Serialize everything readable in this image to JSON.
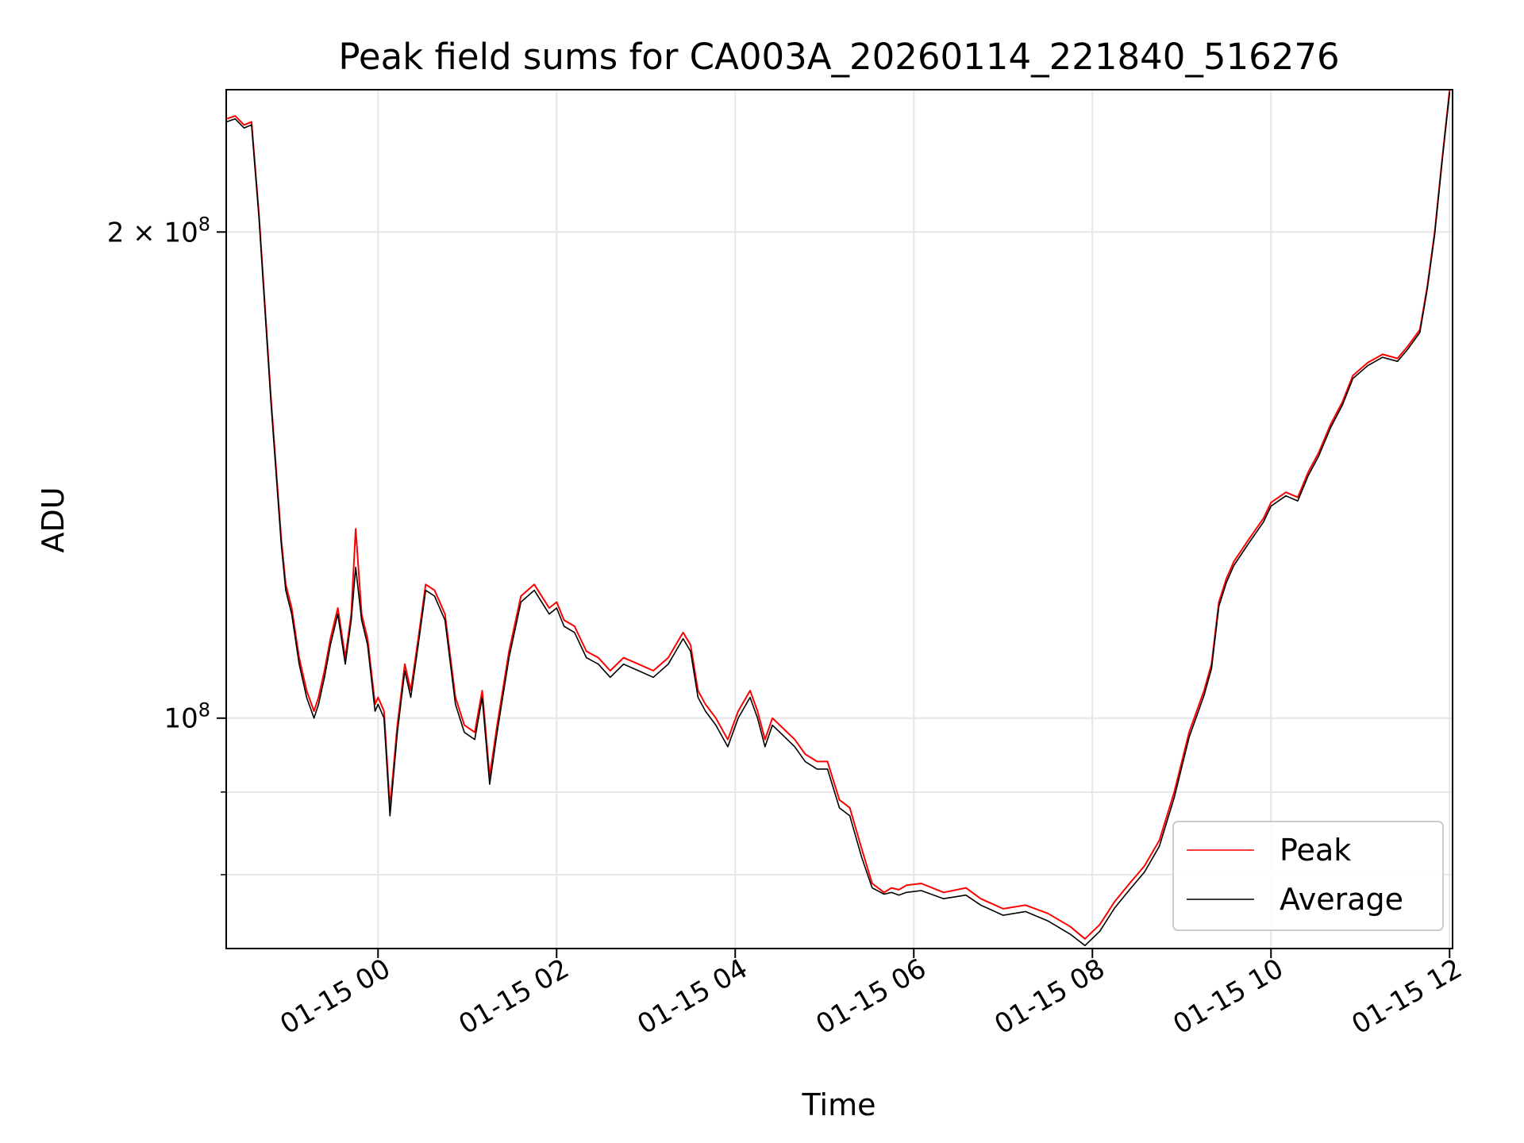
{
  "chart_data": {
    "type": "line",
    "title": "Peak field sums for CA003A_20260114_221840_516276",
    "xlabel": "Time",
    "ylabel": "ADU",
    "yscale": "log",
    "grid": true,
    "legend_position": "lower right",
    "xlim": [
      "2026-01-14 22:18",
      "2026-01-15 12:02"
    ],
    "ylim": [
      72000000,
      245000000
    ],
    "x_ticks": [
      {
        "label": "01-15 00",
        "value": "2026-01-15 00:00"
      },
      {
        "label": "01-15 02",
        "value": "2026-01-15 02:00"
      },
      {
        "label": "01-15 04",
        "value": "2026-01-15 04:00"
      },
      {
        "label": "01-15 06",
        "value": "2026-01-15 06:00"
      },
      {
        "label": "01-15 08",
        "value": "2026-01-15 08:00"
      },
      {
        "label": "01-15 10",
        "value": "2026-01-15 10:00"
      },
      {
        "label": "01-15 12",
        "value": "2026-01-15 12:00"
      }
    ],
    "y_major_ticks": [
      {
        "value": 100000000,
        "base": "10",
        "exp": "8",
        "mult": ""
      },
      {
        "value": 200000000,
        "base": "10",
        "exp": "8",
        "mult": "2 × "
      }
    ],
    "y_minor_ticks": [
      90000000,
      80000000
    ],
    "series": [
      {
        "name": "Peak",
        "color": "#ff0000",
        "x": [
          "2026-01-14 22:18",
          "2026-01-14 22:24",
          "2026-01-14 22:30",
          "2026-01-14 22:35",
          "2026-01-14 22:40",
          "2026-01-14 22:48",
          "2026-01-14 22:55",
          "2026-01-14 22:58",
          "2026-01-14 23:02",
          "2026-01-14 23:07",
          "2026-01-14 23:12",
          "2026-01-14 23:17",
          "2026-01-14 23:20",
          "2026-01-14 23:24",
          "2026-01-14 23:28",
          "2026-01-14 23:33",
          "2026-01-14 23:38",
          "2026-01-14 23:42",
          "2026-01-14 23:45",
          "2026-01-14 23:49",
          "2026-01-14 23:53",
          "2026-01-14 23:58",
          "2026-01-15 00:00",
          "2026-01-15 00:04",
          "2026-01-15 00:08",
          "2026-01-15 00:13",
          "2026-01-15 00:18",
          "2026-01-15 00:22",
          "2026-01-15 00:27",
          "2026-01-15 00:32",
          "2026-01-15 00:38",
          "2026-01-15 00:45",
          "2026-01-15 00:52",
          "2026-01-15 00:58",
          "2026-01-15 01:05",
          "2026-01-15 01:10",
          "2026-01-15 01:15",
          "2026-01-15 01:20",
          "2026-01-15 01:28",
          "2026-01-15 01:36",
          "2026-01-15 01:45",
          "2026-01-15 01:55",
          "2026-01-15 02:00",
          "2026-01-15 02:05",
          "2026-01-15 02:12",
          "2026-01-15 02:20",
          "2026-01-15 02:28",
          "2026-01-15 02:36",
          "2026-01-15 02:45",
          "2026-01-15 02:55",
          "2026-01-15 03:05",
          "2026-01-15 03:15",
          "2026-01-15 03:25",
          "2026-01-15 03:30",
          "2026-01-15 03:35",
          "2026-01-15 03:40",
          "2026-01-15 03:47",
          "2026-01-15 03:55",
          "2026-01-15 04:02",
          "2026-01-15 04:10",
          "2026-01-15 04:15",
          "2026-01-15 04:20",
          "2026-01-15 04:25",
          "2026-01-15 04:30",
          "2026-01-15 04:35",
          "2026-01-15 04:40",
          "2026-01-15 04:47",
          "2026-01-15 04:55",
          "2026-01-15 05:02",
          "2026-01-15 05:10",
          "2026-01-15 05:17",
          "2026-01-15 05:25",
          "2026-01-15 05:32",
          "2026-01-15 05:40",
          "2026-01-15 05:45",
          "2026-01-15 05:50",
          "2026-01-15 05:55",
          "2026-01-15 06:05",
          "2026-01-15 06:20",
          "2026-01-15 06:35",
          "2026-01-15 06:45",
          "2026-01-15 07:00",
          "2026-01-15 07:15",
          "2026-01-15 07:30",
          "2026-01-15 07:45",
          "2026-01-15 07:55",
          "2026-01-15 08:05",
          "2026-01-15 08:15",
          "2026-01-15 08:25",
          "2026-01-15 08:35",
          "2026-01-15 08:45",
          "2026-01-15 08:55",
          "2026-01-15 09:05",
          "2026-01-15 09:15",
          "2026-01-15 09:20",
          "2026-01-15 09:25",
          "2026-01-15 09:30",
          "2026-01-15 09:35",
          "2026-01-15 09:45",
          "2026-01-15 09:55",
          "2026-01-15 10:00",
          "2026-01-15 10:10",
          "2026-01-15 10:18",
          "2026-01-15 10:25",
          "2026-01-15 10:32",
          "2026-01-15 10:40",
          "2026-01-15 10:48",
          "2026-01-15 10:55",
          "2026-01-15 11:05",
          "2026-01-15 11:15",
          "2026-01-15 11:25",
          "2026-01-15 11:32",
          "2026-01-15 11:40",
          "2026-01-15 11:45",
          "2026-01-15 11:50",
          "2026-01-15 11:55",
          "2026-01-15 12:00"
        ],
        "y": [
          235000000,
          236000000,
          233000000,
          234000000,
          205000000,
          158000000,
          129000000,
          121000000,
          117000000,
          109000000,
          104000000,
          101000000,
          103000000,
          107000000,
          112000000,
          117000000,
          109000000,
          116000000,
          131000000,
          116000000,
          112000000,
          102000000,
          103000000,
          101000000,
          88000000,
          99000000,
          108000000,
          104000000,
          112000000,
          121000000,
          120000000,
          116000000,
          103000000,
          99000000,
          98000000,
          104000000,
          92000000,
          99000000,
          110000000,
          119000000,
          121000000,
          117000000,
          118000000,
          115000000,
          114000000,
          110000000,
          109000000,
          107000000,
          109000000,
          108000000,
          107000000,
          109000000,
          113000000,
          111000000,
          104000000,
          102000000,
          100000000,
          97000000,
          101000000,
          104000000,
          101000000,
          97000000,
          100000000,
          99000000,
          98000000,
          97000000,
          95000000,
          94000000,
          94000000,
          89000000,
          88000000,
          83000000,
          79000000,
          78000000,
          78500000,
          78300000,
          78800000,
          79000000,
          78000000,
          78500000,
          77300000,
          76200000,
          76600000,
          75700000,
          74300000,
          73000000,
          74500000,
          77000000,
          79000000,
          81000000,
          84000000,
          90000000,
          98000000,
          104000000,
          108000000,
          118000000,
          122000000,
          125000000,
          129000000,
          133000000,
          136000000,
          138000000,
          137000000,
          142000000,
          146000000,
          152000000,
          157000000,
          163000000,
          166000000,
          168000000,
          167000000,
          170000000,
          174000000,
          185000000,
          200000000,
          222000000,
          245000000
        ]
      },
      {
        "name": "Average",
        "color": "#000000",
        "x": [
          "2026-01-14 22:18",
          "2026-01-14 22:24",
          "2026-01-14 22:30",
          "2026-01-14 22:35",
          "2026-01-14 22:40",
          "2026-01-14 22:48",
          "2026-01-14 22:55",
          "2026-01-14 22:58",
          "2026-01-14 23:02",
          "2026-01-14 23:07",
          "2026-01-14 23:12",
          "2026-01-14 23:17",
          "2026-01-14 23:20",
          "2026-01-14 23:24",
          "2026-01-14 23:28",
          "2026-01-14 23:33",
          "2026-01-14 23:38",
          "2026-01-14 23:42",
          "2026-01-14 23:45",
          "2026-01-14 23:49",
          "2026-01-14 23:53",
          "2026-01-14 23:58",
          "2026-01-15 00:00",
          "2026-01-15 00:04",
          "2026-01-15 00:08",
          "2026-01-15 00:13",
          "2026-01-15 00:18",
          "2026-01-15 00:22",
          "2026-01-15 00:27",
          "2026-01-15 00:32",
          "2026-01-15 00:38",
          "2026-01-15 00:45",
          "2026-01-15 00:52",
          "2026-01-15 00:58",
          "2026-01-15 01:05",
          "2026-01-15 01:10",
          "2026-01-15 01:15",
          "2026-01-15 01:20",
          "2026-01-15 01:28",
          "2026-01-15 01:36",
          "2026-01-15 01:45",
          "2026-01-15 01:55",
          "2026-01-15 02:00",
          "2026-01-15 02:05",
          "2026-01-15 02:12",
          "2026-01-15 02:20",
          "2026-01-15 02:28",
          "2026-01-15 02:36",
          "2026-01-15 02:45",
          "2026-01-15 02:55",
          "2026-01-15 03:05",
          "2026-01-15 03:15",
          "2026-01-15 03:25",
          "2026-01-15 03:30",
          "2026-01-15 03:35",
          "2026-01-15 03:40",
          "2026-01-15 03:47",
          "2026-01-15 03:55",
          "2026-01-15 04:02",
          "2026-01-15 04:10",
          "2026-01-15 04:15",
          "2026-01-15 04:20",
          "2026-01-15 04:25",
          "2026-01-15 04:30",
          "2026-01-15 04:35",
          "2026-01-15 04:40",
          "2026-01-15 04:47",
          "2026-01-15 04:55",
          "2026-01-15 05:02",
          "2026-01-15 05:10",
          "2026-01-15 05:17",
          "2026-01-15 05:25",
          "2026-01-15 05:32",
          "2026-01-15 05:40",
          "2026-01-15 05:45",
          "2026-01-15 05:50",
          "2026-01-15 05:55",
          "2026-01-15 06:05",
          "2026-01-15 06:20",
          "2026-01-15 06:35",
          "2026-01-15 06:45",
          "2026-01-15 07:00",
          "2026-01-15 07:15",
          "2026-01-15 07:30",
          "2026-01-15 07:45",
          "2026-01-15 07:55",
          "2026-01-15 08:05",
          "2026-01-15 08:15",
          "2026-01-15 08:25",
          "2026-01-15 08:35",
          "2026-01-15 08:45",
          "2026-01-15 08:55",
          "2026-01-15 09:05",
          "2026-01-15 09:15",
          "2026-01-15 09:20",
          "2026-01-15 09:25",
          "2026-01-15 09:30",
          "2026-01-15 09:35",
          "2026-01-15 09:45",
          "2026-01-15 09:55",
          "2026-01-15 10:00",
          "2026-01-15 10:10",
          "2026-01-15 10:18",
          "2026-01-15 10:25",
          "2026-01-15 10:32",
          "2026-01-15 10:40",
          "2026-01-15 10:48",
          "2026-01-15 10:55",
          "2026-01-15 11:05",
          "2026-01-15 11:15",
          "2026-01-15 11:25",
          "2026-01-15 11:32",
          "2026-01-15 11:40",
          "2026-01-15 11:45",
          "2026-01-15 11:50",
          "2026-01-15 11:55",
          "2026-01-15 12:00"
        ],
        "y": [
          234000000,
          235000000,
          232000000,
          233000000,
          204000000,
          157000000,
          128000000,
          120000000,
          116000000,
          108000000,
          103000000,
          100000000,
          102000000,
          106000000,
          111000000,
          116000000,
          108000000,
          115000000,
          124000000,
          115000000,
          111000000,
          101000000,
          102000000,
          100000000,
          87000000,
          98000000,
          107000000,
          103000000,
          111000000,
          120000000,
          119000000,
          115000000,
          102000000,
          98000000,
          97000000,
          103000000,
          91000000,
          98000000,
          109000000,
          118000000,
          120000000,
          116000000,
          117000000,
          114000000,
          113000000,
          109000000,
          108000000,
          106000000,
          108000000,
          107000000,
          106000000,
          108000000,
          112000000,
          110000000,
          103000000,
          101000000,
          99000000,
          96000000,
          100000000,
          103000000,
          100000000,
          96000000,
          99000000,
          98000000,
          97000000,
          96000000,
          94000000,
          93000000,
          93000000,
          88000000,
          87000000,
          82000000,
          78500000,
          77800000,
          78000000,
          77700000,
          78000000,
          78200000,
          77300000,
          77700000,
          76600000,
          75500000,
          75900000,
          74900000,
          73500000,
          72300000,
          73800000,
          76300000,
          78300000,
          80300000,
          83300000,
          89300000,
          97300000,
          103300000,
          107300000,
          117300000,
          121300000,
          124300000,
          128300000,
          132300000,
          135300000,
          137300000,
          136300000,
          141300000,
          145300000,
          151300000,
          156300000,
          162300000,
          165300000,
          167300000,
          166300000,
          169300000,
          173300000,
          184300000,
          199300000,
          221300000,
          244000000
        ]
      }
    ]
  }
}
